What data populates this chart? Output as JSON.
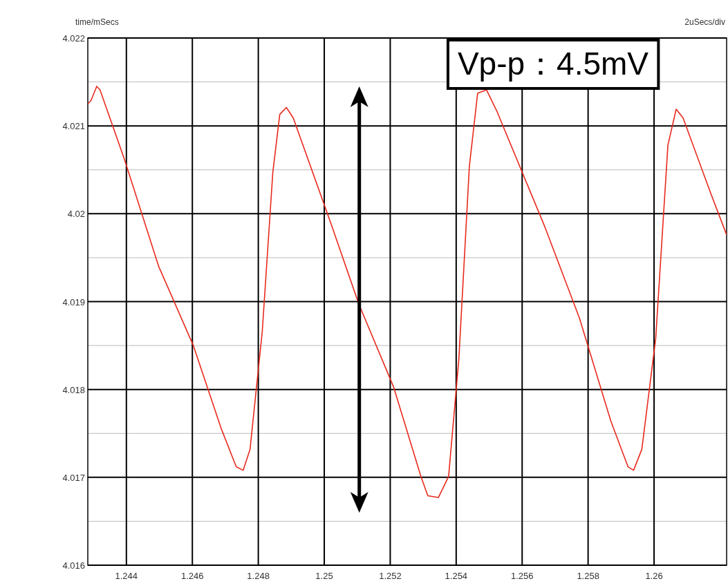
{
  "chart_data": {
    "type": "line",
    "title": "time/mSecs",
    "subtitle": "2uSecs/div",
    "x": [
      1.24283,
      1.24293,
      1.2431,
      1.2432,
      1.24394,
      1.24498,
      1.24603,
      1.24687,
      1.24733,
      1.24754,
      1.24775,
      1.24812,
      1.24844,
      1.24865,
      1.24885,
      1.24906,
      1.25021,
      1.25105,
      1.2521,
      1.25293,
      1.25314,
      1.25346,
      1.25377,
      1.25408,
      1.2544,
      1.25465,
      1.25492,
      1.25523,
      1.2567,
      1.25774,
      1.25869,
      1.25921,
      1.25938,
      1.25963,
      1.26005,
      1.26042,
      1.26067,
      1.26088,
      1.26172,
      1.2622
    ],
    "series": [
      {
        "color": "#e8291c",
        "values": [
          4.02125,
          4.02129,
          4.02145,
          4.02141,
          4.02062,
          4.0194,
          4.0185,
          4.01756,
          4.01712,
          4.01708,
          4.01732,
          4.01866,
          4.02047,
          4.02113,
          4.02121,
          4.02109,
          4.01988,
          4.01897,
          4.01803,
          4.01701,
          4.01679,
          4.01677,
          4.01701,
          4.01834,
          4.02054,
          4.02137,
          4.02141,
          4.02117,
          4.01984,
          4.01881,
          4.01764,
          4.01712,
          4.01708,
          4.01732,
          4.01858,
          4.02078,
          4.02119,
          4.02109,
          4.02023,
          4.01976
        ]
      }
    ],
    "xlim": [
      1.24283,
      1.2622
    ],
    "ylim": [
      4.016,
      4.022
    ],
    "xticks": [
      1.244,
      1.246,
      1.248,
      1.25,
      1.252,
      1.254,
      1.256,
      1.258,
      1.26
    ],
    "yticks": [
      4.016,
      {
        "value": 4.0165,
        "label": null
      },
      4.017,
      {
        "value": 4.0175,
        "label": null
      },
      4.018,
      {
        "value": 4.0185,
        "label": null
      },
      4.019,
      {
        "value": 4.0195,
        "label": null
      },
      4.02,
      {
        "value": 4.0205,
        "label": null
      },
      4.021,
      {
        "value": 4.0215,
        "label": null
      },
      4.022
    ],
    "grid": true,
    "marker": "none",
    "line_style": "solid",
    "annotations": [
      "Vp-p：4.5mV"
    ]
  }
}
